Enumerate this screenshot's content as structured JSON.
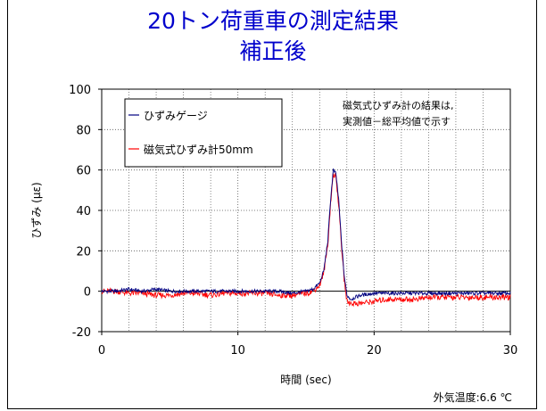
{
  "title_line1": "20トン荷重車の測定結果",
  "title_line2": "補正後",
  "footer_note": "外気温度:6.6 ℃",
  "colors": {
    "title": "#0000cc",
    "gauge": "#000080",
    "magnetic": "#ff0000"
  },
  "chart_data": {
    "type": "line",
    "xlabel": "時間 (sec)",
    "ylabel": "ひずみ (με)",
    "xlim": [
      0,
      30
    ],
    "ylim": [
      -20,
      100
    ],
    "xticks": [
      0,
      10,
      20,
      30
    ],
    "yticks": [
      -20,
      0,
      20,
      40,
      60,
      80,
      100
    ],
    "grid": true,
    "legend_position": "top-left",
    "annotation": [
      "磁気式ひずみ計の結果は,",
      "実測値－総平均値で示す"
    ],
    "series": [
      {
        "name": "ひずみゲージ",
        "color": "#000080",
        "x": [
          0,
          1,
          2,
          3,
          4,
          5,
          6,
          7,
          8,
          9,
          10,
          11,
          12,
          13,
          14,
          15,
          15.5,
          16,
          16.3,
          16.6,
          16.8,
          17.0,
          17.2,
          17.4,
          17.6,
          17.8,
          18.0,
          18.3,
          18.6,
          19,
          20,
          21,
          22,
          23,
          24,
          25,
          26,
          27,
          28,
          29,
          30
        ],
        "y": [
          0,
          0,
          1,
          0,
          1,
          0,
          0,
          0,
          0,
          0,
          0,
          0,
          0,
          0,
          -1,
          0,
          1,
          4,
          10,
          25,
          45,
          60,
          58,
          45,
          25,
          8,
          -2,
          -4,
          -3,
          -2,
          -1,
          -1,
          -1,
          -1,
          -1,
          -1,
          -1,
          -1,
          -1,
          -1,
          -1
        ]
      },
      {
        "name": "磁気式ひずみ計50mm",
        "color": "#ff0000",
        "x": [
          0,
          1,
          2,
          3,
          4,
          5,
          6,
          7,
          8,
          9,
          10,
          11,
          12,
          13,
          14,
          15,
          15.5,
          16,
          16.3,
          16.6,
          16.8,
          17.0,
          17.2,
          17.4,
          17.6,
          17.8,
          18.0,
          18.3,
          18.6,
          19,
          20,
          21,
          22,
          23,
          24,
          25,
          26,
          27,
          28,
          29,
          30
        ],
        "y": [
          0,
          0,
          -1,
          -1,
          -2,
          -2,
          -1,
          -1,
          -2,
          -1,
          -1,
          -1,
          -1,
          -2,
          -2,
          -1,
          0,
          3,
          9,
          23,
          43,
          58,
          56,
          43,
          23,
          6,
          -5,
          -6,
          -6,
          -6,
          -5,
          -4,
          -4,
          -4,
          -3,
          -3,
          -3,
          -3,
          -3,
          -3,
          -3
        ]
      }
    ]
  }
}
